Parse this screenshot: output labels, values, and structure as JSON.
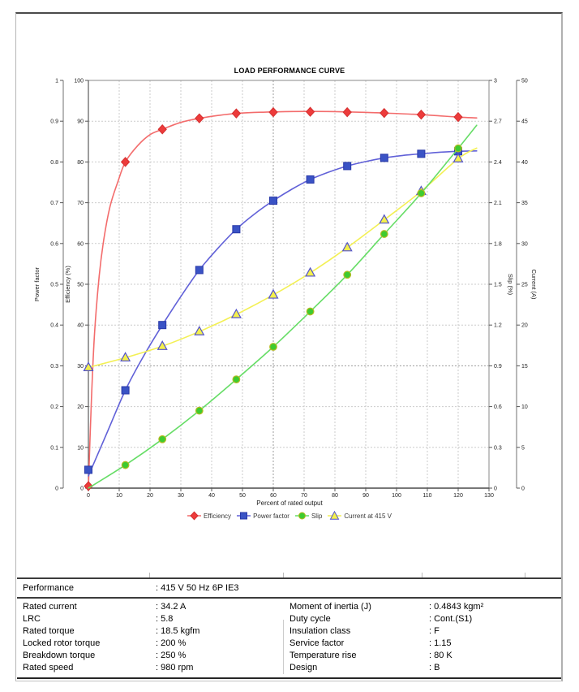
{
  "chart_data": {
    "type": "line",
    "title": "LOAD PERFORMANCE CURVE",
    "xlabel": "Percent of rated output",
    "x_range": [
      0,
      130
    ],
    "x_ticks": [
      0,
      10,
      20,
      30,
      40,
      50,
      60,
      70,
      80,
      90,
      100,
      110,
      120,
      130
    ],
    "grid": "dashed",
    "legend_position": "bottom",
    "x": [
      0,
      12,
      24,
      36,
      48,
      60,
      72,
      84,
      96,
      108,
      120
    ],
    "axes": {
      "power_factor": {
        "label": "Power factor",
        "range": [
          0,
          1
        ],
        "tick_step": 0.1,
        "side": "left-outer"
      },
      "efficiency": {
        "label": "Efficiency (%)",
        "range": [
          0,
          100
        ],
        "tick_step": 10,
        "side": "left"
      },
      "slip": {
        "label": "Slip (%)",
        "range": [
          0,
          3
        ],
        "tick_step": 0.3,
        "side": "right"
      },
      "current": {
        "label": "Current (A)",
        "range": [
          0,
          50
        ],
        "tick_step": 5,
        "side": "right-outer"
      }
    },
    "series": [
      {
        "name": "Efficiency",
        "axis": "efficiency",
        "marker": "diamond",
        "z": 1,
        "line_color": "#f36c6c",
        "fill": "#ed3b3b",
        "stroke": "#d42f2f",
        "values": [
          0.5,
          80,
          88,
          90.7,
          91.9,
          92.2,
          92.3,
          92.2,
          92.0,
          91.6,
          91.0
        ],
        "curve": [
          [
            0,
            0
          ],
          [
            1,
            22
          ],
          [
            2,
            38
          ],
          [
            3.5,
            52
          ],
          [
            5,
            61
          ],
          [
            7,
            69
          ],
          [
            9.5,
            75
          ],
          [
            12,
            80
          ],
          [
            16,
            84
          ],
          [
            20,
            86.7
          ],
          [
            24,
            88
          ],
          [
            30,
            89.7
          ],
          [
            36,
            90.7
          ],
          [
            42,
            91.4
          ],
          [
            48,
            91.9
          ],
          [
            56,
            92.2
          ],
          [
            64,
            92.35
          ],
          [
            72,
            92.4
          ],
          [
            80,
            92.35
          ],
          [
            88,
            92.2
          ],
          [
            96,
            92
          ],
          [
            108,
            91.6
          ],
          [
            120,
            91
          ],
          [
            126,
            90.8
          ]
        ]
      },
      {
        "name": "Power factor",
        "axis": "power_factor",
        "marker": "square",
        "z": 2,
        "line_color": "#6161d8",
        "fill": "#3a53c5",
        "stroke": "#2838a8",
        "values": [
          0.045,
          0.24,
          0.4,
          0.535,
          0.635,
          0.705,
          0.757,
          0.79,
          0.81,
          0.82,
          0.826
        ],
        "curve": [
          [
            0,
            0.03
          ],
          [
            6,
            0.135
          ],
          [
            12,
            0.24
          ],
          [
            18,
            0.325
          ],
          [
            24,
            0.4
          ],
          [
            30,
            0.47
          ],
          [
            36,
            0.535
          ],
          [
            42,
            0.588
          ],
          [
            48,
            0.635
          ],
          [
            54,
            0.673
          ],
          [
            60,
            0.705
          ],
          [
            66,
            0.733
          ],
          [
            72,
            0.757
          ],
          [
            78,
            0.775
          ],
          [
            84,
            0.79
          ],
          [
            90,
            0.801
          ],
          [
            96,
            0.81
          ],
          [
            102,
            0.816
          ],
          [
            108,
            0.82
          ],
          [
            114,
            0.824
          ],
          [
            120,
            0.826
          ],
          [
            126,
            0.827
          ]
        ]
      },
      {
        "name": "Slip",
        "axis": "slip",
        "marker": "circle",
        "z": 4,
        "line_color": "#66dd66",
        "fill": "#3ecb2f",
        "stroke": "#b7bb20",
        "values": [
          null,
          0.17,
          0.36,
          0.57,
          0.8,
          1.04,
          1.3,
          1.57,
          1.87,
          2.17,
          2.5
        ],
        "curve": [
          [
            0,
            0
          ],
          [
            12,
            0.17
          ],
          [
            24,
            0.36
          ],
          [
            36,
            0.57
          ],
          [
            48,
            0.8
          ],
          [
            60,
            1.04
          ],
          [
            72,
            1.3
          ],
          [
            84,
            1.57
          ],
          [
            96,
            1.87
          ],
          [
            108,
            2.17
          ],
          [
            120,
            2.5
          ],
          [
            126,
            2.67
          ]
        ]
      },
      {
        "name": "Current at 415 V",
        "axis": "current",
        "marker": "triangle",
        "z": 3,
        "line_color": "#f3f055",
        "fill": "#f4f04c",
        "stroke": "#5353cb",
        "values": [
          14.8,
          16.0,
          17.4,
          19.2,
          21.3,
          23.7,
          26.4,
          29.5,
          32.9,
          36.4,
          40.4
        ],
        "curve": [
          [
            0,
            14.8
          ],
          [
            12,
            16.0
          ],
          [
            24,
            17.4
          ],
          [
            36,
            19.2
          ],
          [
            48,
            21.3
          ],
          [
            60,
            23.7
          ],
          [
            72,
            26.4
          ],
          [
            84,
            29.5
          ],
          [
            96,
            32.9
          ],
          [
            108,
            36.4
          ],
          [
            120,
            40.4
          ],
          [
            126,
            41.7
          ]
        ]
      }
    ]
  },
  "table": {
    "header": {
      "label": "Performance",
      "value": ": 415 V 50 Hz 6P IE3"
    },
    "rows": [
      {
        "label": "Rated current",
        "value": ": 34.2 A",
        "label2": "Moment of inertia (J)",
        "value2": ": 0.4843 kgm²"
      },
      {
        "label": "LRC",
        "value": ": 5.8",
        "label2": "Duty cycle",
        "value2": ": Cont.(S1)"
      },
      {
        "label": "Rated torque",
        "value": ": 18.5 kgfm",
        "label2": "Insulation class",
        "value2": ": F"
      },
      {
        "label": "Locked rotor torque",
        "value": ": 200 %",
        "label2": "Service factor",
        "value2": ": 1.15"
      },
      {
        "label": "Breakdown torque",
        "value": ": 250 %",
        "label2": "Temperature rise",
        "value2": ": 80 K"
      },
      {
        "label": "Rated speed",
        "value": ": 980 rpm",
        "label2": "Design",
        "value2": ": B"
      }
    ]
  }
}
